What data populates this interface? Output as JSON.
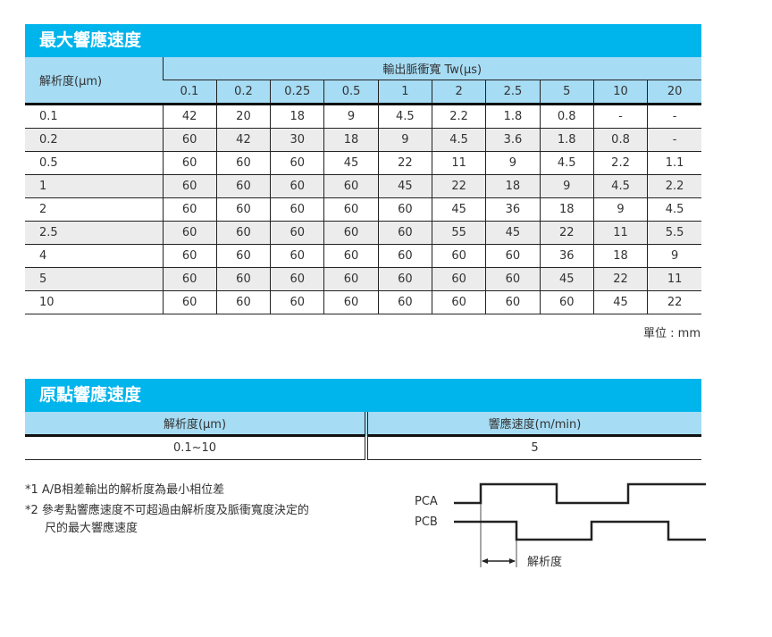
{
  "max_speed": {
    "title": "最大響應速度",
    "row_header": "解析度(µm)",
    "col_group_header": "輸出脈衝寬 Tw(µs)",
    "columns": [
      "0.1",
      "0.2",
      "0.25",
      "0.5",
      "1",
      "2",
      "2.5",
      "5",
      "10",
      "20"
    ],
    "rows": [
      {
        "label": "0.1",
        "values": [
          "42",
          "20",
          "18",
          "9",
          "4.5",
          "2.2",
          "1.8",
          "0.8",
          "-",
          "-"
        ]
      },
      {
        "label": "0.2",
        "values": [
          "60",
          "42",
          "30",
          "18",
          "9",
          "4.5",
          "3.6",
          "1.8",
          "0.8",
          "-"
        ]
      },
      {
        "label": "0.5",
        "values": [
          "60",
          "60",
          "60",
          "45",
          "22",
          "11",
          "9",
          "4.5",
          "2.2",
          "1.1"
        ]
      },
      {
        "label": "1",
        "values": [
          "60",
          "60",
          "60",
          "60",
          "45",
          "22",
          "18",
          "9",
          "4.5",
          "2.2"
        ]
      },
      {
        "label": "2",
        "values": [
          "60",
          "60",
          "60",
          "60",
          "60",
          "45",
          "36",
          "18",
          "9",
          "4.5"
        ]
      },
      {
        "label": "2.5",
        "values": [
          "60",
          "60",
          "60",
          "60",
          "60",
          "55",
          "45",
          "22",
          "11",
          "5.5"
        ]
      },
      {
        "label": "4",
        "values": [
          "60",
          "60",
          "60",
          "60",
          "60",
          "60",
          "60",
          "36",
          "18",
          "9"
        ]
      },
      {
        "label": "5",
        "values": [
          "60",
          "60",
          "60",
          "60",
          "60",
          "60",
          "60",
          "45",
          "22",
          "11"
        ]
      },
      {
        "label": "10",
        "values": [
          "60",
          "60",
          "60",
          "60",
          "60",
          "60",
          "60",
          "60",
          "45",
          "22"
        ]
      }
    ],
    "unit": "單位 : mm"
  },
  "origin_speed": {
    "title": "原點響應速度",
    "headers": [
      "解析度(µm)",
      "響應速度(m/min)"
    ],
    "row": [
      "0.1~10",
      "5"
    ]
  },
  "notes": [
    "*1  A/B相差輸出的解析度為最小相位差",
    "*2  參考點響應速度不可超過由解析度及脈衝寬度決定的",
    "尺的最大響應速度"
  ],
  "diagram": {
    "pca": "PCA",
    "pcb": "PCB",
    "resolution": "解析度"
  },
  "colors": {
    "title_bar": "#00b4ec",
    "header": "#a6dcf4",
    "alt_row": "#ececec"
  }
}
